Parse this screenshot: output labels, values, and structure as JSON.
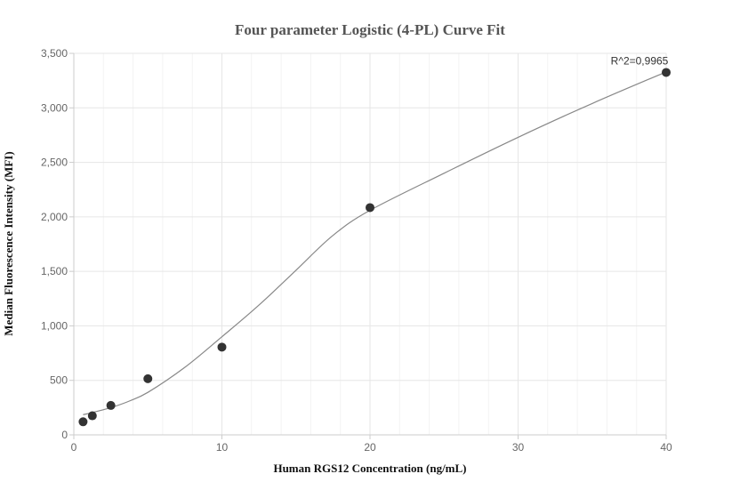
{
  "chart_data": {
    "type": "scatter",
    "title": "Four parameter Logistic (4-PL) Curve Fit",
    "xlabel": "Human RGS12 Concentration (ng/mL)",
    "ylabel": "Median Fluorescence Intensity (MFI)",
    "xlim": [
      0,
      40
    ],
    "ylim": [
      0,
      3500
    ],
    "x_ticks": [
      0,
      10,
      20,
      30,
      40
    ],
    "x_tick_labels": [
      "0",
      "10",
      "20",
      "30",
      "40"
    ],
    "y_ticks": [
      0,
      500,
      1000,
      1500,
      2000,
      2500,
      3000,
      3500
    ],
    "y_tick_labels": [
      "0",
      "500",
      "1,000",
      "1,500",
      "2,000",
      "2,500",
      "3,000",
      "3,500"
    ],
    "grid": true,
    "annotation": "R^2=0,9965",
    "points": {
      "x": [
        0.625,
        1.25,
        2.5,
        5,
        10,
        20,
        40
      ],
      "y": [
        120,
        175,
        270,
        515,
        805,
        2085,
        3325
      ]
    },
    "fit_curve": {
      "x": [
        0.625,
        1.25,
        2.5,
        3.75,
        5,
        7.5,
        10,
        12.5,
        15,
        17.5,
        20,
        25,
        30,
        35,
        40
      ],
      "y": [
        185,
        205,
        250,
        310,
        390,
        620,
        900,
        1190,
        1510,
        1830,
        2060,
        2400,
        2730,
        3040,
        3330
      ]
    },
    "colors": {
      "point": "#333333",
      "curve": "#888888",
      "grid": "#e6e6e6",
      "axis": "#cccccc"
    }
  }
}
